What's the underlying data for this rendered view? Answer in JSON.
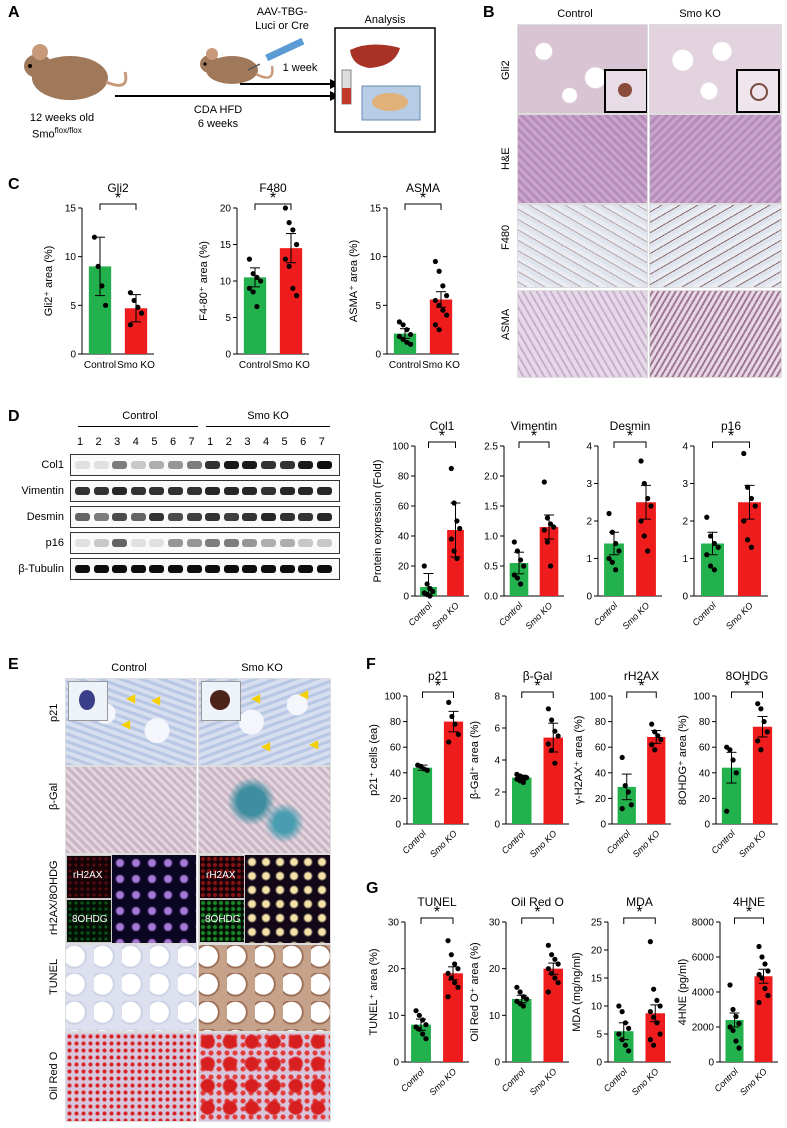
{
  "panels": {
    "A": "A",
    "B": "B",
    "C": "C",
    "D": "D",
    "E": "E",
    "F": "F",
    "G": "G"
  },
  "schematic": {
    "mouse_age": "12 weeks old",
    "mouse_strain": "Smo",
    "mouse_strain_sup": "flox/flox",
    "diet": "CDA HFD",
    "diet_duration": "6 weeks",
    "virus_line1": "AAV-TBG-",
    "virus_line2": "Luci or Cre",
    "virus_time": "1 week",
    "analysis": "Analysis"
  },
  "histology_B": {
    "col_headers": [
      "Control",
      "Smo KO"
    ],
    "rows": [
      "Gli2",
      "H&E",
      "F480",
      "ASMA"
    ]
  },
  "histology_E": {
    "col_headers": [
      "Control",
      "Smo KO"
    ],
    "rows": [
      "p21",
      "β-Gal",
      "rH2AX/8OHDG",
      "TUNEL",
      "Oil Red O"
    ],
    "inset_labels": [
      "rH2AX",
      "8OHDG"
    ]
  },
  "western": {
    "group_labels": [
      "Control",
      "Smo KO"
    ],
    "lane_numbers": [
      "1",
      "2",
      "3",
      "4",
      "5",
      "6",
      "7",
      "1",
      "2",
      "3",
      "4",
      "5",
      "6",
      "7"
    ],
    "bands": [
      "Col1",
      "Vimentin",
      "Desmin",
      "p16",
      "β-Tubulin"
    ]
  },
  "colors": {
    "control": "#22b14c",
    "ko": "#ee1c1c",
    "dot": "#000000"
  },
  "charts_C": [
    {
      "title": "Gli2",
      "ylabel": "Gli2⁺ area (%)",
      "ylim": [
        0,
        15
      ],
      "ticks": [
        "0",
        "5",
        "10",
        "15"
      ],
      "sig": "*",
      "categories": [
        "Control",
        "Smo KO"
      ],
      "values": [
        9.0,
        4.7
      ],
      "err": [
        3.0,
        1.4
      ],
      "points": [
        [
          12.0,
          9.0,
          7.0,
          5.0
        ],
        [
          6.3,
          5.5,
          4.8,
          4.2,
          3.0
        ]
      ]
    },
    {
      "title": "F480",
      "ylabel": "F4-80⁺ area (%)",
      "ylim": [
        0,
        20
      ],
      "ticks": [
        "0",
        "5",
        "10",
        "15",
        "20"
      ],
      "sig": "*",
      "categories": [
        "Control",
        "Smo KO"
      ],
      "values": [
        10.5,
        14.5
      ],
      "err": [
        1.3,
        2.0
      ],
      "points": [
        [
          13.0,
          11.0,
          10.5,
          10.0,
          9.0,
          8.5,
          6.5
        ],
        [
          20.0,
          18.0,
          17.0,
          15.0,
          13.0,
          12.0,
          9.0,
          8.0
        ]
      ]
    },
    {
      "title": "ASMA",
      "ylabel": "ASMA⁺ area (%)",
      "ylim": [
        0,
        15
      ],
      "ticks": [
        "0",
        "5",
        "10",
        "15"
      ],
      "sig": "*",
      "categories": [
        "Control",
        "Smo KO"
      ],
      "values": [
        2.1,
        5.6
      ],
      "err": [
        0.5,
        0.8
      ],
      "points": [
        [
          3.3,
          3.0,
          2.5,
          2.0,
          1.8,
          1.5,
          1.2,
          1.0
        ],
        [
          9.5,
          8.5,
          7.0,
          6.0,
          5.5,
          5.0,
          4.5,
          4.0,
          3.0,
          2.5
        ]
      ]
    }
  ],
  "charts_D": [
    {
      "title": "Col1",
      "ylabel": "Protein expression (Fold)",
      "ylim": [
        0,
        100
      ],
      "ticks": [
        "0",
        "20",
        "40",
        "60",
        "80",
        "100"
      ],
      "sig": "*",
      "categories": [
        "Control",
        "Smo KO"
      ],
      "values": [
        6,
        44
      ],
      "err": [
        9,
        18
      ],
      "points": [
        [
          20,
          8,
          5,
          3,
          2,
          1,
          0
        ],
        [
          85,
          62,
          50,
          45,
          38,
          30,
          25
        ]
      ]
    },
    {
      "title": "Vimentin",
      "ylabel": "",
      "ylim": [
        0,
        2.5
      ],
      "ticks": [
        "0.0",
        "0.5",
        "1.0",
        "1.5",
        "2.0",
        "2.5"
      ],
      "sig": "*",
      "categories": [
        "Control",
        "Smo KO"
      ],
      "values": [
        0.55,
        1.15
      ],
      "err": [
        0.18,
        0.2
      ],
      "points": [
        [
          0.9,
          0.75,
          0.6,
          0.5,
          0.35,
          0.3,
          0.2
        ],
        [
          1.9,
          1.3,
          1.2,
          1.15,
          1.1,
          0.9,
          0.5
        ]
      ]
    },
    {
      "title": "Desmin",
      "ylabel": "",
      "ylim": [
        0,
        4
      ],
      "ticks": [
        "0",
        "1",
        "2",
        "3",
        "4"
      ],
      "sig": "*",
      "categories": [
        "Control",
        "Smo KO"
      ],
      "values": [
        1.4,
        2.5
      ],
      "err": [
        0.3,
        0.45
      ],
      "points": [
        [
          2.2,
          1.7,
          1.4,
          1.2,
          1.0,
          0.9,
          0.7
        ],
        [
          3.6,
          3.0,
          2.6,
          2.4,
          2.0,
          1.6,
          1.2
        ]
      ]
    },
    {
      "title": "p16",
      "ylabel": "",
      "ylim": [
        0,
        4
      ],
      "ticks": [
        "0",
        "1",
        "2",
        "3",
        "4"
      ],
      "sig": "*",
      "categories": [
        "Control",
        "Smo KO"
      ],
      "values": [
        1.4,
        2.5
      ],
      "err": [
        0.3,
        0.45
      ],
      "points": [
        [
          2.1,
          1.6,
          1.4,
          1.3,
          1.1,
          0.8,
          0.7
        ],
        [
          3.8,
          2.9,
          2.6,
          2.4,
          2.0,
          1.5,
          1.3
        ]
      ]
    }
  ],
  "charts_F": [
    {
      "title": "p21",
      "ylabel": "p21⁺ cells (ea)",
      "ylim": [
        0,
        100
      ],
      "ticks": [
        "0",
        "20",
        "40",
        "60",
        "80",
        "100"
      ],
      "sig": "*",
      "categories": [
        "Control",
        "Smo KO"
      ],
      "values": [
        44,
        80
      ],
      "err": [
        2,
        8
      ],
      "points": [
        [
          46,
          45,
          43,
          42
        ],
        [
          95,
          84,
          78,
          70,
          64
        ]
      ]
    },
    {
      "title": "β-Gal",
      "ylabel": "β-Gal⁺ area (%)",
      "ylim": [
        0,
        8
      ],
      "ticks": [
        "0",
        "2",
        "4",
        "6",
        "8"
      ],
      "sig": "*",
      "categories": [
        "Control",
        "Smo KO"
      ],
      "values": [
        2.9,
        5.4
      ],
      "err": [
        0.15,
        0.9
      ],
      "points": [
        [
          3.1,
          3.0,
          2.9,
          2.9,
          2.8,
          2.7,
          2.6
        ],
        [
          7.2,
          6.5,
          5.8,
          5.5,
          5.0,
          4.6,
          3.8
        ]
      ]
    },
    {
      "title": "rH2AX",
      "ylabel": "γ-H2AX⁺ area (%)",
      "ylim": [
        0,
        100
      ],
      "ticks": [
        "0",
        "20",
        "40",
        "60",
        "80",
        "100"
      ],
      "sig": "*",
      "categories": [
        "Control",
        "Smo KO"
      ],
      "values": [
        29,
        68
      ],
      "err": [
        10,
        5
      ],
      "points": [
        [
          52,
          30,
          25,
          15,
          12
        ],
        [
          78,
          72,
          69,
          66,
          62,
          58
        ]
      ]
    },
    {
      "title": "8OHDG",
      "ylabel": "8OHDG⁺ area (%)",
      "ylim": [
        0,
        100
      ],
      "ticks": [
        "0",
        "20",
        "40",
        "60",
        "80",
        "100"
      ],
      "sig": "*",
      "categories": [
        "Control",
        "Smo KO"
      ],
      "values": [
        44,
        76
      ],
      "err": [
        12,
        8
      ],
      "points": [
        [
          60,
          58,
          50,
          40,
          10
        ],
        [
          94,
          90,
          80,
          72,
          65,
          58
        ]
      ]
    }
  ],
  "charts_G": [
    {
      "title": "TUNEL",
      "ylabel": "TUNEL⁺ area (%)",
      "ylim": [
        0,
        30
      ],
      "ticks": [
        "0",
        "10",
        "20",
        "30"
      ],
      "sig": "*",
      "categories": [
        "Control",
        "Smo KO"
      ],
      "values": [
        8.0,
        19.0
      ],
      "err": [
        1.2,
        1.4
      ],
      "points": [
        [
          11,
          10,
          9,
          8,
          7.5,
          7,
          6,
          5
        ],
        [
          26,
          23,
          21,
          20,
          19,
          18,
          17,
          16,
          14
        ]
      ]
    },
    {
      "title": "Oil Red O",
      "ylabel": "Oil Red O⁺ area (%)",
      "ylim": [
        0,
        30
      ],
      "ticks": [
        "0",
        "10",
        "20",
        "30"
      ],
      "sig": "*",
      "categories": [
        "Control",
        "Smo KO"
      ],
      "values": [
        13.5,
        20.0
      ],
      "err": [
        0.8,
        1.2
      ],
      "points": [
        [
          16,
          15,
          14,
          13.5,
          13,
          12.5,
          12
        ],
        [
          25,
          23,
          22,
          21,
          20,
          19,
          18,
          17,
          15
        ]
      ]
    },
    {
      "title": "MDA",
      "ylabel": "MDA (mg/ng/ml)",
      "ylim": [
        0,
        25
      ],
      "ticks": [
        "0",
        "5",
        "10",
        "15",
        "20",
        "25"
      ],
      "sig": "*",
      "categories": [
        "Control",
        "Smo KO"
      ],
      "values": [
        5.5,
        8.7
      ],
      "err": [
        1.5,
        1.5
      ],
      "points": [
        [
          10,
          9,
          7,
          6,
          5,
          4,
          3,
          2
        ],
        [
          21.5,
          13,
          11,
          10,
          9,
          8,
          7,
          5,
          4,
          3
        ]
      ]
    },
    {
      "title": "4HNE",
      "ylabel": "4HNE (pg/ml)",
      "ylim": [
        0,
        8000
      ],
      "ticks": [
        "0",
        "2000",
        "4000",
        "6000",
        "8000"
      ],
      "sig": "*",
      "categories": [
        "Control",
        "Smo KO"
      ],
      "values": [
        2400,
        4900
      ],
      "err": [
        400,
        400
      ],
      "points": [
        [
          4400,
          3000,
          2600,
          2200,
          2000,
          1800,
          1200,
          800
        ],
        [
          6600,
          6000,
          5600,
          5200,
          5000,
          4800,
          4200,
          3800,
          3400
        ]
      ]
    }
  ]
}
